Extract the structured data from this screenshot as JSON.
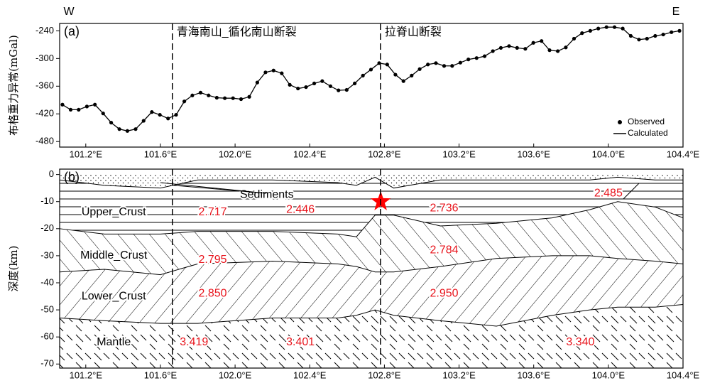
{
  "chart_data": [
    {
      "type": "line",
      "panel_label": "(a)",
      "left_label": "W",
      "right_label": "E",
      "ylabel": "布格重力异常(mGal)",
      "x": [
        101.075,
        101.119,
        101.162,
        101.206,
        101.249,
        101.293,
        101.336,
        101.38,
        101.423,
        101.467,
        101.51,
        101.554,
        101.597,
        101.641,
        101.684,
        101.728,
        101.771,
        101.815,
        101.858,
        101.902,
        101.945,
        101.989,
        102.032,
        102.076,
        102.119,
        102.163,
        102.206,
        102.25,
        102.293,
        102.337,
        102.38,
        102.424,
        102.467,
        102.511,
        102.554,
        102.598,
        102.641,
        102.685,
        102.728,
        102.772,
        102.815,
        102.859,
        102.902,
        102.946,
        102.989,
        103.033,
        103.076,
        103.12,
        103.163,
        103.207,
        103.25,
        103.294,
        103.337,
        103.381,
        103.424,
        103.468,
        103.511,
        103.555,
        103.598,
        103.642,
        103.685,
        103.729,
        103.772,
        103.816,
        103.859,
        103.903,
        103.946,
        103.99,
        104.033,
        104.077,
        104.12,
        104.164,
        104.207,
        104.251,
        104.294,
        104.338,
        104.381
      ],
      "series": [
        {
          "name": "Observed",
          "color": "#000000",
          "marker": "circle",
          "values": [
            -400,
            -411,
            -411,
            -404,
            -400,
            -419,
            -439,
            -453,
            -457,
            -453,
            -435,
            -416,
            -422,
            -430,
            -422,
            -393,
            -380,
            -374,
            -380,
            -385,
            -386,
            -386,
            -388,
            -383,
            -352,
            -330,
            -326,
            -332,
            -357,
            -365,
            -362,
            -354,
            -349,
            -360,
            -369,
            -368,
            -354,
            -337,
            -324,
            -310,
            -313,
            -335,
            -349,
            -337,
            -323,
            -313,
            -310,
            -316,
            -316,
            -309,
            -302,
            -299,
            -295,
            -284,
            -277,
            -273,
            -277,
            -279,
            -266,
            -262,
            -282,
            -284,
            -276,
            -257,
            -245,
            -240,
            -235,
            -232,
            -232,
            -235,
            -251,
            -259,
            -257,
            -251,
            -248,
            -243,
            -240
          ]
        },
        {
          "name": "Calculated",
          "color": "#000000",
          "marker": "line",
          "values": [
            -400,
            -411,
            -411,
            -404,
            -400,
            -419,
            -439,
            -453,
            -457,
            -453,
            -435,
            -416,
            -422,
            -430,
            -422,
            -393,
            -380,
            -374,
            -380,
            -385,
            -386,
            -386,
            -388,
            -383,
            -352,
            -330,
            -326,
            -332,
            -357,
            -365,
            -362,
            -354,
            -349,
            -360,
            -369,
            -368,
            -354,
            -337,
            -324,
            -310,
            -313,
            -335,
            -349,
            -337,
            -323,
            -313,
            -310,
            -316,
            -316,
            -309,
            -302,
            -299,
            -295,
            -284,
            -277,
            -273,
            -277,
            -279,
            -266,
            -262,
            -282,
            -284,
            -276,
            -257,
            -245,
            -240,
            -235,
            -232,
            -232,
            -235,
            -251,
            -259,
            -257,
            -251,
            -248,
            -243,
            -240
          ]
        }
      ],
      "xlim": [
        101.06,
        104.4
      ],
      "ylim": [
        -492,
        -224
      ],
      "xticks": [
        {
          "value": 101.2,
          "label": "101.2°E"
        },
        {
          "value": 101.6,
          "label": "101.6°E"
        },
        {
          "value": 102.0,
          "label": "102.0°E"
        },
        {
          "value": 102.4,
          "label": "102.4°E"
        },
        {
          "value": 102.8,
          "label": "102.8°E"
        },
        {
          "value": 103.2,
          "label": "103.2°E"
        },
        {
          "value": 103.6,
          "label": "103.6°E"
        },
        {
          "value": 104.0,
          "label": "104.0°E"
        },
        {
          "value": 104.4,
          "label": "104.4°E"
        }
      ],
      "yticks": [
        -240,
        -300,
        -360,
        -420,
        -480
      ],
      "faults": [
        {
          "label": "青海南山_循化南山断裂",
          "x": 101.664
        },
        {
          "label": "拉脊山断裂",
          "x": 102.779
        }
      ],
      "legend": "lower right"
    },
    {
      "type": "section",
      "panel_label": "(b)",
      "ylabel": "深度(km)",
      "x": [
        101.06,
        101.3,
        101.6,
        101.8,
        102.2,
        102.55,
        102.65,
        102.75,
        102.85,
        103.1,
        103.4,
        103.7,
        103.9,
        104.05,
        104.25,
        104.4
      ],
      "layers": [
        {
          "name": "Sediments",
          "base": [
            -2,
            -4,
            -5,
            -2,
            -2,
            -3,
            -4,
            -1,
            -5,
            -2,
            -2,
            -2,
            -2,
            -1,
            -2,
            -2
          ],
          "densities": [
            2.485
          ]
        },
        {
          "name": "Upper_Crust",
          "base": [
            -20,
            -22,
            -22,
            -21,
            -21,
            -22,
            -23,
            -15,
            -15,
            -19,
            -18,
            -16,
            -13,
            -10,
            -12,
            -16
          ],
          "densities": [
            2.717,
            2.446,
            2.736
          ]
        },
        {
          "name": "Middle_Crust",
          "base": [
            -36,
            -35,
            -37,
            -33,
            -32,
            -33,
            -34,
            -36,
            -36,
            -34,
            -31,
            -30,
            -30,
            -31,
            -32,
            -33
          ],
          "densities": [
            2.795,
            2.784
          ]
        },
        {
          "name": "Lower_Crust",
          "base": [
            -53,
            -54,
            -55,
            -55,
            -53,
            -53,
            -52,
            -50,
            -52,
            -54,
            -56,
            -52,
            -50,
            -49,
            -49,
            -48
          ],
          "densities": [
            {
              "value": 2.85,
              "label": "2.850"
            },
            {
              "value": 2.95,
              "label": "2.950"
            }
          ]
        },
        {
          "name": "Mantle",
          "densities": [
            3.419,
            3.401,
            {
              "value": 3.34,
              "label": "3.340"
            }
          ]
        }
      ],
      "hypocenter": {
        "x": 102.78,
        "depth": -10,
        "color": "#ff0000"
      },
      "density_color": "#e8141c",
      "xlim": [
        101.06,
        104.4
      ],
      "ylim": [
        -71.5,
        2
      ],
      "xticks": [
        {
          "value": 101.2,
          "label": "101.2°E"
        },
        {
          "value": 101.6,
          "label": "101.6°E"
        },
        {
          "value": 102.0,
          "label": "102.0°E"
        },
        {
          "value": 102.4,
          "label": "102.4°E"
        },
        {
          "value": 102.8,
          "label": "102.8°E"
        },
        {
          "value": 103.2,
          "label": "103.2°E"
        },
        {
          "value": 103.6,
          "label": "103.6°E"
        },
        {
          "value": 104.0,
          "label": "104.0°E"
        },
        {
          "value": 104.4,
          "label": "104.4°E"
        }
      ],
      "yticks": [
        0,
        -10,
        -20,
        -30,
        -40,
        -50,
        -60,
        -70
      ]
    }
  ]
}
